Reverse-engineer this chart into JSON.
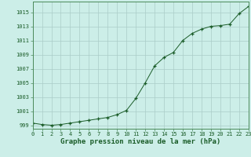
{
  "xlabel": "Graphe pression niveau de la mer (hPa)",
  "background_color": "#cceee8",
  "plot_bg_color": "#cceee8",
  "line_color": "#1a5c28",
  "marker_color": "#1a5c28",
  "grid_color": "#aaccc8",
  "x": [
    0,
    1,
    2,
    3,
    4,
    5,
    6,
    7,
    8,
    9,
    10,
    11,
    12,
    13,
    14,
    15,
    16,
    17,
    18,
    19,
    20,
    21,
    22,
    23
  ],
  "y": [
    999.3,
    999.1,
    999.0,
    999.1,
    999.3,
    999.5,
    999.7,
    999.9,
    1000.1,
    1000.5,
    1001.1,
    1002.8,
    1005.0,
    1007.4,
    1008.6,
    1009.3,
    1011.0,
    1012.0,
    1012.6,
    1013.0,
    1013.1,
    1013.3,
    1014.8,
    1015.8
  ],
  "ylim": [
    998.5,
    1016.5
  ],
  "xlim": [
    0,
    23
  ],
  "yticks": [
    999,
    1001,
    1003,
    1005,
    1007,
    1009,
    1011,
    1013,
    1015
  ],
  "xticks": [
    0,
    1,
    2,
    3,
    4,
    5,
    6,
    7,
    8,
    9,
    10,
    11,
    12,
    13,
    14,
    15,
    16,
    17,
    18,
    19,
    20,
    21,
    22,
    23
  ],
  "xtick_labels": [
    "0",
    "1",
    "2",
    "3",
    "4",
    "5",
    "6",
    "7",
    "8",
    "9",
    "10",
    "11",
    "12",
    "13",
    "14",
    "15",
    "16",
    "17",
    "18",
    "19",
    "20",
    "21",
    "22",
    "23"
  ],
  "tick_fontsize": 5,
  "xlabel_fontsize": 6.5
}
